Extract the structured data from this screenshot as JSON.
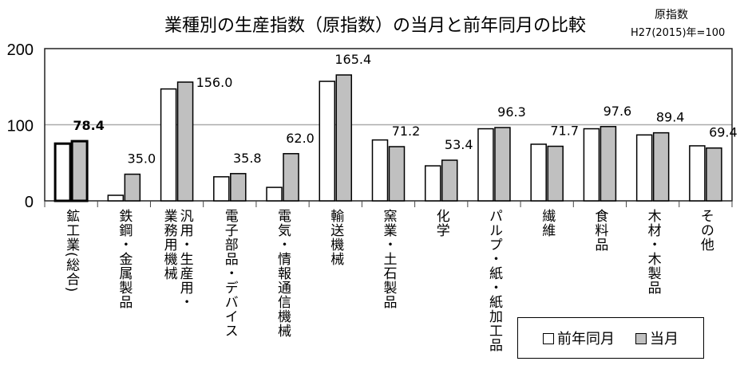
{
  "chart_data": {
    "type": "bar",
    "title": "業種別の生産指数（原指数）の当月と前年同月の比較",
    "unit_note": [
      "原指数",
      "H27(2015)年=100"
    ],
    "ylim": [
      0,
      200
    ],
    "yticks": [
      0,
      100,
      200
    ],
    "grid": true,
    "legend_placement": "bottom-right",
    "categories": [
      "鉱工業(総合)",
      "鉄鋼・金属製品",
      "汎用・生産用・\n業務用機械",
      "電子部品・デバイス",
      "電気・情報通信機械",
      "輸送機械",
      "窯業・土石製品",
      "化学",
      "パルプ・紙・紙加工品",
      "繊維",
      "食料品",
      "木材・木製品",
      "その他"
    ],
    "series": [
      {
        "name": "前年同月",
        "color": "#ffffff",
        "values": [
          75.2,
          7.3,
          147.0,
          31.6,
          17.7,
          157.0,
          80.0,
          46.0,
          94.7,
          74.4,
          94.7,
          86.6,
          72.3
        ]
      },
      {
        "name": "当月",
        "color": "#c0c0c0",
        "values": [
          78.4,
          35.0,
          156.0,
          35.8,
          62.0,
          165.4,
          71.2,
          53.4,
          96.3,
          71.7,
          97.6,
          89.4,
          69.4
        ],
        "labels": [
          "78.4",
          "35.0",
          "156.0",
          "35.8",
          "62.0",
          "165.4",
          "71.2",
          "53.4",
          "96.3",
          "71.7",
          "97.6",
          "89.4",
          "69.4"
        ]
      }
    ]
  }
}
